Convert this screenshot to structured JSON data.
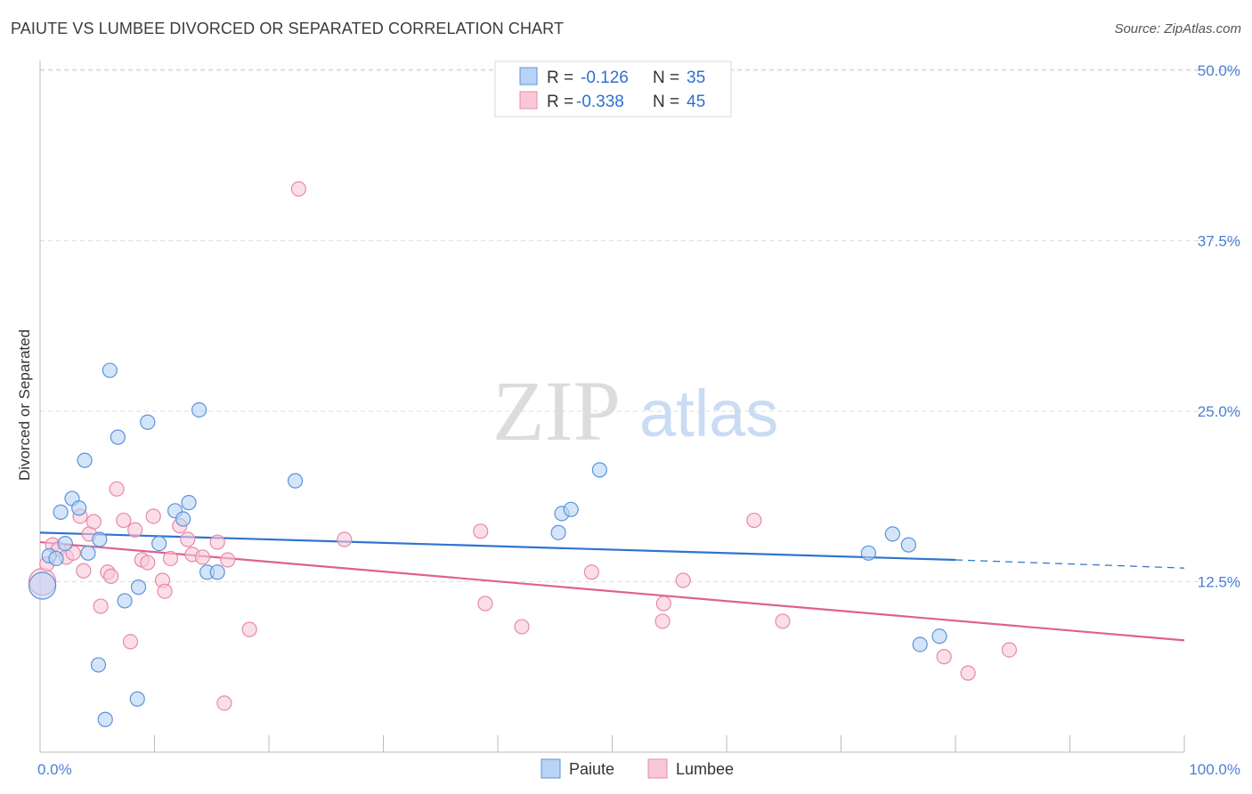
{
  "title": "PAIUTE VS LUMBEE DIVORCED OR SEPARATED CORRELATION CHART",
  "source": "Source: ZipAtlas.com",
  "watermark": {
    "zip": "ZIP",
    "atlas": "atlas"
  },
  "colors": {
    "paiute_fill": "#b8d3f5",
    "paiute_stroke": "#5b93d9",
    "paiute_line": "#2f74d0",
    "lumbee_fill": "#f8c8d8",
    "lumbee_stroke": "#e68aa8",
    "lumbee_line": "#e0608e",
    "grid": "#dddddd",
    "axis_label": "#4a7fd4"
  },
  "legend": {
    "items": [
      {
        "r_label": "R =",
        "r_value": "-0.126",
        "n_label": "N =",
        "n_value": "35"
      },
      {
        "r_label": "R =",
        "r_value": "-0.338",
        "n_label": "N =",
        "n_value": "45"
      }
    ]
  },
  "chart_data": {
    "type": "scatter",
    "title": "PAIUTE VS LUMBEE DIVORCED OR SEPARATED CORRELATION CHART",
    "xlabel": "",
    "ylabel": "Divorced or Separated",
    "xlim": [
      0,
      100
    ],
    "ylim": [
      0,
      52
    ],
    "x_tick_labels": [
      "0.0%",
      "100.0%"
    ],
    "y_ticks": [
      12.5,
      25.0,
      37.5,
      50.0
    ],
    "y_tick_labels": [
      "12.5%",
      "25.0%",
      "37.5%",
      "50.0%"
    ],
    "legend_bottom": [
      "Paiute",
      "Lumbee"
    ],
    "series": [
      {
        "name": "Paiute",
        "r": -0.126,
        "n": 35,
        "trend": {
          "x0": 0,
          "y0": 16.1,
          "x1": 80,
          "y1": 14.1,
          "dash_to_x": 100,
          "dash_to_y": 13.5
        },
        "points": [
          {
            "x": 0.2,
            "y": 12.2,
            "big": true
          },
          {
            "x": 0.8,
            "y": 14.4
          },
          {
            "x": 1.4,
            "y": 14.2
          },
          {
            "x": 1.8,
            "y": 17.6
          },
          {
            "x": 2.2,
            "y": 15.3
          },
          {
            "x": 2.8,
            "y": 18.6
          },
          {
            "x": 3.4,
            "y": 17.9
          },
          {
            "x": 3.9,
            "y": 21.4
          },
          {
            "x": 4.2,
            "y": 14.6
          },
          {
            "x": 5.2,
            "y": 15.6
          },
          {
            "x": 5.1,
            "y": 6.4
          },
          {
            "x": 5.7,
            "y": 2.4
          },
          {
            "x": 6.1,
            "y": 28.0
          },
          {
            "x": 6.8,
            "y": 23.1
          },
          {
            "x": 7.4,
            "y": 11.1
          },
          {
            "x": 8.6,
            "y": 12.1
          },
          {
            "x": 8.5,
            "y": 3.9
          },
          {
            "x": 9.4,
            "y": 24.2
          },
          {
            "x": 10.4,
            "y": 15.3
          },
          {
            "x": 11.8,
            "y": 17.7
          },
          {
            "x": 12.5,
            "y": 17.1
          },
          {
            "x": 13.0,
            "y": 18.3
          },
          {
            "x": 13.9,
            "y": 25.1
          },
          {
            "x": 14.6,
            "y": 13.2
          },
          {
            "x": 15.5,
            "y": 13.2
          },
          {
            "x": 22.3,
            "y": 19.9
          },
          {
            "x": 45.3,
            "y": 16.1
          },
          {
            "x": 45.6,
            "y": 17.5
          },
          {
            "x": 46.4,
            "y": 17.8
          },
          {
            "x": 48.9,
            "y": 20.7
          },
          {
            "x": 72.4,
            "y": 14.6
          },
          {
            "x": 74.5,
            "y": 16.0
          },
          {
            "x": 75.9,
            "y": 15.2
          },
          {
            "x": 76.9,
            "y": 7.9
          },
          {
            "x": 78.6,
            "y": 8.5
          }
        ]
      },
      {
        "name": "Lumbee",
        "r": -0.338,
        "n": 45,
        "trend": {
          "x0": 0,
          "y0": 15.4,
          "x1": 100,
          "y1": 8.2
        },
        "points": [
          {
            "x": 0.2,
            "y": 12.5,
            "big": true
          },
          {
            "x": 0.6,
            "y": 13.8
          },
          {
            "x": 1.1,
            "y": 15.2
          },
          {
            "x": 1.6,
            "y": 14.9
          },
          {
            "x": 2.3,
            "y": 14.3
          },
          {
            "x": 2.9,
            "y": 14.6
          },
          {
            "x": 3.5,
            "y": 17.3
          },
          {
            "x": 3.8,
            "y": 13.3
          },
          {
            "x": 4.3,
            "y": 16.0
          },
          {
            "x": 4.7,
            "y": 16.9
          },
          {
            "x": 5.3,
            "y": 10.7
          },
          {
            "x": 5.9,
            "y": 13.2
          },
          {
            "x": 6.2,
            "y": 12.9
          },
          {
            "x": 6.7,
            "y": 19.3
          },
          {
            "x": 7.3,
            "y": 17.0
          },
          {
            "x": 7.9,
            "y": 8.1
          },
          {
            "x": 8.3,
            "y": 16.3
          },
          {
            "x": 8.9,
            "y": 14.1
          },
          {
            "x": 9.4,
            "y": 13.9
          },
          {
            "x": 9.9,
            "y": 17.3
          },
          {
            "x": 10.7,
            "y": 12.6
          },
          {
            "x": 10.9,
            "y": 11.8
          },
          {
            "x": 11.4,
            "y": 14.2
          },
          {
            "x": 12.2,
            "y": 16.6
          },
          {
            "x": 12.9,
            "y": 15.6
          },
          {
            "x": 13.3,
            "y": 14.5
          },
          {
            "x": 14.2,
            "y": 14.3
          },
          {
            "x": 15.5,
            "y": 15.4
          },
          {
            "x": 16.4,
            "y": 14.1
          },
          {
            "x": 16.1,
            "y": 3.6
          },
          {
            "x": 18.3,
            "y": 9.0
          },
          {
            "x": 22.6,
            "y": 41.3
          },
          {
            "x": 26.6,
            "y": 15.6
          },
          {
            "x": 38.5,
            "y": 16.2
          },
          {
            "x": 38.9,
            "y": 10.9
          },
          {
            "x": 42.1,
            "y": 9.2
          },
          {
            "x": 48.2,
            "y": 13.2
          },
          {
            "x": 54.4,
            "y": 9.6
          },
          {
            "x": 54.5,
            "y": 10.9
          },
          {
            "x": 56.2,
            "y": 12.6
          },
          {
            "x": 62.4,
            "y": 17.0
          },
          {
            "x": 64.9,
            "y": 9.6
          },
          {
            "x": 79.0,
            "y": 7.0
          },
          {
            "x": 81.1,
            "y": 5.8
          },
          {
            "x": 84.7,
            "y": 7.5
          }
        ]
      }
    ]
  }
}
